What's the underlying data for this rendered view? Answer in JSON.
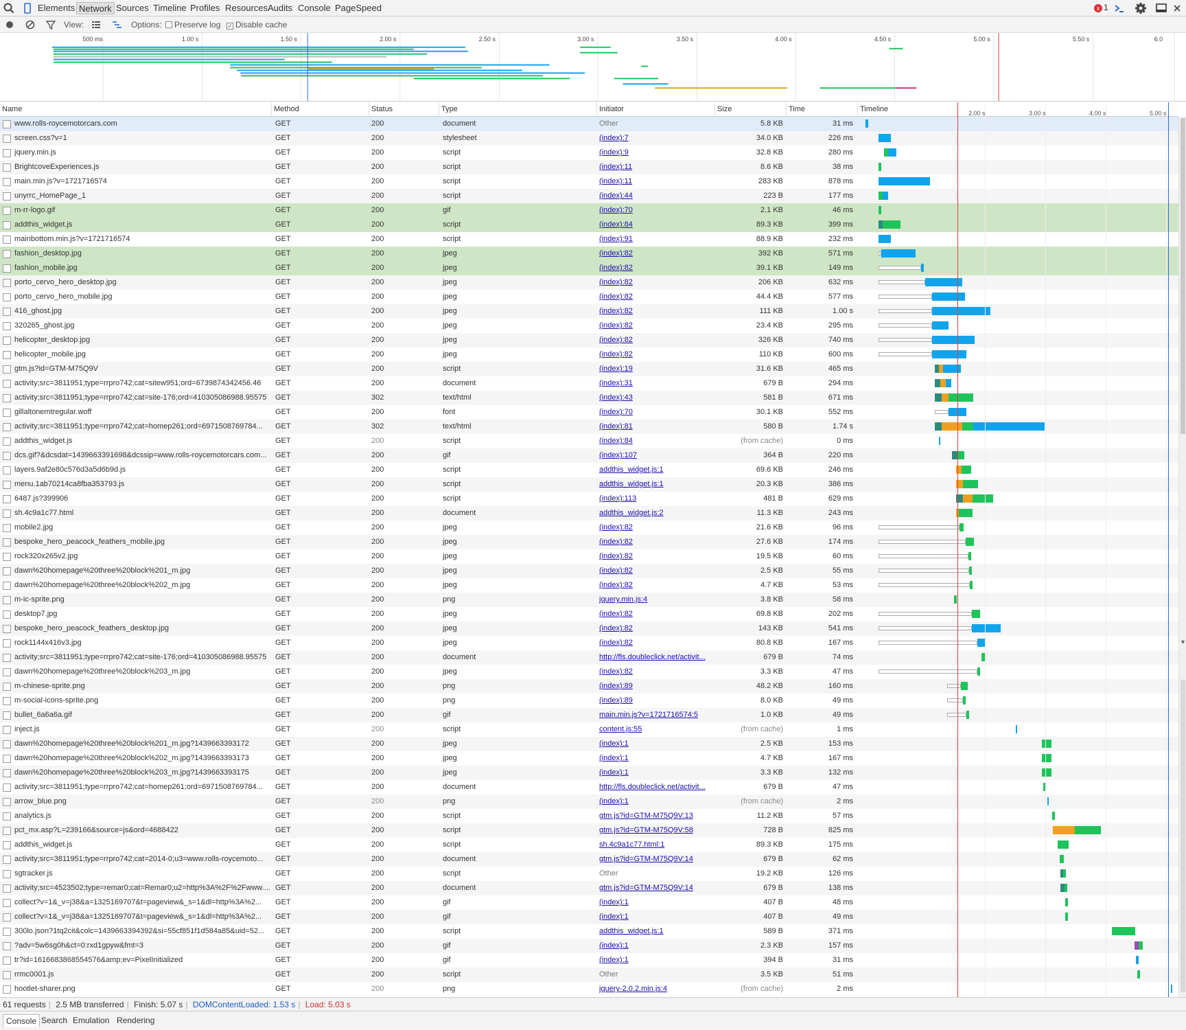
{
  "tabs": [
    "Elements",
    "Network",
    "Sources",
    "Timeline",
    "Profiles",
    "Resources",
    "Audits",
    "Console",
    "PageSpeed"
  ],
  "active_tab": "Network",
  "error_count": "1",
  "toolbar": {
    "view_label": "View:",
    "options_label": "Options:",
    "preserve_log": "Preserve log",
    "disable_cache": "Disable cache"
  },
  "overview_ticks": [
    "500 ms",
    "1.00 s",
    "1.50 s",
    "2.00 s",
    "2.50 s",
    "3.00 s",
    "3.50 s",
    "4.00 s",
    "4.50 s",
    "5.00 s",
    "5.50 s",
    "6.0"
  ],
  "columns": {
    "name": "Name",
    "method": "Method",
    "status": "Status",
    "type": "Type",
    "initiator": "Initiator",
    "size": "Size",
    "time": "Time",
    "timeline": "Timeline"
  },
  "timeline_ticks": [
    "2.00 s",
    "3.00 s",
    "4.00 s",
    "5.00 s"
  ],
  "rows": [
    {
      "name": "www.rolls-roycemotorcars.com",
      "method": "GET",
      "status": "200",
      "type": "document",
      "initiator": "Other",
      "size": "5.8 KB",
      "time": "31 ms"
    },
    {
      "name": "screen.css?v=1",
      "method": "GET",
      "status": "200",
      "type": "stylesheet",
      "initiator": "(index):7",
      "size": "34.0 KB",
      "time": "226 ms"
    },
    {
      "name": "jquery.min.js",
      "method": "GET",
      "status": "200",
      "type": "script",
      "initiator": "(index):9",
      "size": "32.8 KB",
      "time": "280 ms"
    },
    {
      "name": "BrightcoveExperiences.js",
      "method": "GET",
      "status": "200",
      "type": "script",
      "initiator": "(index):11",
      "size": "8.6 KB",
      "time": "38 ms"
    },
    {
      "name": "main.min.js?v=1721716574",
      "method": "GET",
      "status": "200",
      "type": "script",
      "initiator": "(index):11",
      "size": "283 KB",
      "time": "878 ms"
    },
    {
      "name": "unyrrc_HomePage_1",
      "method": "GET",
      "status": "200",
      "type": "script",
      "initiator": "(index):44",
      "size": "223 B",
      "time": "177 ms"
    },
    {
      "name": "m-rr-logo.gif",
      "method": "GET",
      "status": "200",
      "type": "gif",
      "initiator": "(index):70",
      "size": "2.1 KB",
      "time": "46 ms"
    },
    {
      "name": "addthis_widget.js",
      "method": "GET",
      "status": "200",
      "type": "script",
      "initiator": "(index):84",
      "size": "89.3 KB",
      "time": "399 ms"
    },
    {
      "name": "mainbottom.min.js?v=1721716574",
      "method": "GET",
      "status": "200",
      "type": "script",
      "initiator": "(index):91",
      "size": "88.9 KB",
      "time": "232 ms"
    },
    {
      "name": "fashion_desktop.jpg",
      "method": "GET",
      "status": "200",
      "type": "jpeg",
      "initiator": "(index):82",
      "size": "392 KB",
      "time": "571 ms"
    },
    {
      "name": "fashion_mobile.jpg",
      "method": "GET",
      "status": "200",
      "type": "jpeg",
      "initiator": "(index):82",
      "size": "39.1 KB",
      "time": "149 ms"
    },
    {
      "name": "porto_cervo_hero_desktop.jpg",
      "method": "GET",
      "status": "200",
      "type": "jpeg",
      "initiator": "(index):82",
      "size": "206 KB",
      "time": "632 ms"
    },
    {
      "name": "porto_cervo_hero_mobile.jpg",
      "method": "GET",
      "status": "200",
      "type": "jpeg",
      "initiator": "(index):82",
      "size": "44.4 KB",
      "time": "577 ms"
    },
    {
      "name": "416_ghost.jpg",
      "method": "GET",
      "status": "200",
      "type": "jpeg",
      "initiator": "(index):82",
      "size": "111 KB",
      "time": "1.00 s"
    },
    {
      "name": "320265_ghost.jpg",
      "method": "GET",
      "status": "200",
      "type": "jpeg",
      "initiator": "(index):82",
      "size": "23.4 KB",
      "time": "295 ms"
    },
    {
      "name": "helicopter_desktop.jpg",
      "method": "GET",
      "status": "200",
      "type": "jpeg",
      "initiator": "(index):82",
      "size": "326 KB",
      "time": "740 ms"
    },
    {
      "name": "helicopter_mobile.jpg",
      "method": "GET",
      "status": "200",
      "type": "jpeg",
      "initiator": "(index):82",
      "size": "110 KB",
      "time": "600 ms"
    },
    {
      "name": "gtm.js?id=GTM-M75Q9V",
      "method": "GET",
      "status": "200",
      "type": "script",
      "initiator": "(index):19",
      "size": "31.6 KB",
      "time": "465 ms"
    },
    {
      "name": "activity;src=3811951;type=rrpro742;cat=sitew951;ord=6739874342456.46",
      "method": "GET",
      "status": "200",
      "type": "document",
      "initiator": "(index):31",
      "size": "679 B",
      "time": "294 ms"
    },
    {
      "name": "activity;src=3811951;type=rrpro742;cat=site-176;ord=410305086988.95575",
      "method": "GET",
      "status": "302",
      "type": "text/html",
      "initiator": "(index):43",
      "size": "581 B",
      "time": "671 ms"
    },
    {
      "name": "gillaltonemtregular.woff",
      "method": "GET",
      "status": "200",
      "type": "font",
      "initiator": "(index):70",
      "size": "30.1 KB",
      "time": "552 ms"
    },
    {
      "name": "activity;src=3811951;type=rrpro742;cat=homep261;ord=6971508769784...",
      "method": "GET",
      "status": "302",
      "type": "text/html",
      "initiator": "(index):81",
      "size": "580 B",
      "time": "1.74 s"
    },
    {
      "name": "addthis_widget.js",
      "method": "GET",
      "status": "200",
      "type": "script",
      "initiator": "(index):84",
      "size": "(from cache)",
      "time": "0 ms"
    },
    {
      "name": "dcs.gif?&dcsdat=1439663391698&dcssip=www.rolls-roycemotorcars.com...",
      "method": "GET",
      "status": "200",
      "type": "gif",
      "initiator": "(index):107",
      "size": "364 B",
      "time": "220 ms"
    },
    {
      "name": "layers.9af2e80c576d3a5d6b9d.js",
      "method": "GET",
      "status": "200",
      "type": "script",
      "initiator": "addthis_widget.js:1",
      "size": "69.6 KB",
      "time": "246 ms"
    },
    {
      "name": "menu.1ab70214ca8fba353793.js",
      "method": "GET",
      "status": "200",
      "type": "script",
      "initiator": "addthis_widget.js:1",
      "size": "20.3 KB",
      "time": "386 ms"
    },
    {
      "name": "6487.js?399906",
      "method": "GET",
      "status": "200",
      "type": "script",
      "initiator": "(index):113",
      "size": "481 B",
      "time": "629 ms"
    },
    {
      "name": "sh.4c9a1c77.html",
      "method": "GET",
      "status": "200",
      "type": "document",
      "initiator": "addthis_widget.js:2",
      "size": "11.3 KB",
      "time": "243 ms"
    },
    {
      "name": "mobile2.jpg",
      "method": "GET",
      "status": "200",
      "type": "jpeg",
      "initiator": "(index):82",
      "size": "21.6 KB",
      "time": "96 ms"
    },
    {
      "name": "bespoke_hero_peacock_feathers_mobile.jpg",
      "method": "GET",
      "status": "200",
      "type": "jpeg",
      "initiator": "(index):82",
      "size": "27.6 KB",
      "time": "174 ms"
    },
    {
      "name": "rock320x265v2.jpg",
      "method": "GET",
      "status": "200",
      "type": "jpeg",
      "initiator": "(index):82",
      "size": "19.5 KB",
      "time": "60 ms"
    },
    {
      "name": "dawn%20homepage%20three%20block%201_m.jpg",
      "method": "GET",
      "status": "200",
      "type": "jpeg",
      "initiator": "(index):82",
      "size": "2.5 KB",
      "time": "55 ms"
    },
    {
      "name": "dawn%20homepage%20three%20block%202_m.jpg",
      "method": "GET",
      "status": "200",
      "type": "jpeg",
      "initiator": "(index):82",
      "size": "4.7 KB",
      "time": "53 ms"
    },
    {
      "name": "m-ic-sprite.png",
      "method": "GET",
      "status": "200",
      "type": "png",
      "initiator": "jquery.min.js:4",
      "size": "3.8 KB",
      "time": "58 ms"
    },
    {
      "name": "desktop7.jpg",
      "method": "GET",
      "status": "200",
      "type": "jpeg",
      "initiator": "(index):82",
      "size": "69.8 KB",
      "time": "202 ms"
    },
    {
      "name": "bespoke_hero_peacock_feathers_desktop.jpg",
      "method": "GET",
      "status": "200",
      "type": "jpeg",
      "initiator": "(index):82",
      "size": "143 KB",
      "time": "541 ms"
    },
    {
      "name": "rock1144x416v3.jpg",
      "method": "GET",
      "status": "200",
      "type": "jpeg",
      "initiator": "(index):82",
      "size": "80.8 KB",
      "time": "167 ms"
    },
    {
      "name": "activity;src=3811951;type=rrpro742;cat=site-176;ord=410305086988.95575",
      "method": "GET",
      "status": "200",
      "type": "document",
      "initiator": "http://fls.doubleclick.net/activit...",
      "size": "679 B",
      "time": "74 ms"
    },
    {
      "name": "dawn%20homepage%20three%20block%203_m.jpg",
      "method": "GET",
      "status": "200",
      "type": "jpeg",
      "initiator": "(index):82",
      "size": "3.3 KB",
      "time": "47 ms"
    },
    {
      "name": "m-chinese-sprite.png",
      "method": "GET",
      "status": "200",
      "type": "png",
      "initiator": "(index):89",
      "size": "48.2 KB",
      "time": "160 ms"
    },
    {
      "name": "m-social-icons-sprite.png",
      "method": "GET",
      "status": "200",
      "type": "png",
      "initiator": "(index):89",
      "size": "8.0 KB",
      "time": "49 ms"
    },
    {
      "name": "bullet_6a6a6a.gif",
      "method": "GET",
      "status": "200",
      "type": "gif",
      "initiator": "main.min.js?v=1721716574:5",
      "size": "1.0 KB",
      "time": "49 ms"
    },
    {
      "name": "inject.js",
      "method": "GET",
      "status": "200",
      "type": "script",
      "initiator": "content.js:55",
      "size": "(from cache)",
      "time": "1 ms"
    },
    {
      "name": "dawn%20homepage%20three%20block%201_m.jpg?1439663393172",
      "method": "GET",
      "status": "200",
      "type": "jpeg",
      "initiator": "(index):1",
      "size": "2.5 KB",
      "time": "153 ms"
    },
    {
      "name": "dawn%20homepage%20three%20block%202_m.jpg?1439663393173",
      "method": "GET",
      "status": "200",
      "type": "jpeg",
      "initiator": "(index):1",
      "size": "4.7 KB",
      "time": "167 ms"
    },
    {
      "name": "dawn%20homepage%20three%20block%203_m.jpg?1439663393175",
      "method": "GET",
      "status": "200",
      "type": "jpeg",
      "initiator": "(index):1",
      "size": "3.3 KB",
      "time": "132 ms"
    },
    {
      "name": "activity;src=3811951;type=rrpro742;cat=homep261;ord=6971508769784...",
      "method": "GET",
      "status": "200",
      "type": "document",
      "initiator": "http://fls.doubleclick.net/activit...",
      "size": "679 B",
      "time": "47 ms"
    },
    {
      "name": "arrow_blue.png",
      "method": "GET",
      "status": "200",
      "type": "png",
      "initiator": "(index):1",
      "size": "(from cache)",
      "time": "2 ms"
    },
    {
      "name": "analytics.js",
      "method": "GET",
      "status": "200",
      "type": "script",
      "initiator": "gtm.js?id=GTM-M75Q9V:13",
      "size": "11.2 KB",
      "time": "57 ms"
    },
    {
      "name": "pct_mx.asp?L=239166&source=js&ord=4688422",
      "method": "GET",
      "status": "200",
      "type": "script",
      "initiator": "gtm.js?id=GTM-M75Q9V:58",
      "size": "728 B",
      "time": "825 ms"
    },
    {
      "name": "addthis_widget.js",
      "method": "GET",
      "status": "200",
      "type": "script",
      "initiator": "sh.4c9a1c77.html:1",
      "size": "89.3 KB",
      "time": "175 ms"
    },
    {
      "name": "activity;src=3811951;type=rrpro742;cat=2014-0;u3=www.rolls-roycemoto...",
      "method": "GET",
      "status": "200",
      "type": "document",
      "initiator": "gtm.js?id=GTM-M75Q9V:14",
      "size": "679 B",
      "time": "62 ms"
    },
    {
      "name": "sgtracker.js",
      "method": "GET",
      "status": "200",
      "type": "script",
      "initiator": "Other",
      "size": "19.2 KB",
      "time": "126 ms"
    },
    {
      "name": "activity;src=4523502;type=remar0;cat=Remar0;u2=http%3A%2F%2Fwww....",
      "method": "GET",
      "status": "200",
      "type": "document",
      "initiator": "gtm.js?id=GTM-M75Q9V:14",
      "size": "679 B",
      "time": "138 ms"
    },
    {
      "name": "collect?v=1&_v=j38&a=1325169707&t=pageview&_s=1&dl=http%3A%2...",
      "method": "GET",
      "status": "200",
      "type": "gif",
      "initiator": "(index):1",
      "size": "407 B",
      "time": "48 ms"
    },
    {
      "name": "collect?v=1&_v=j38&a=1325169707&t=pageview&_s=1&dl=http%3A%2...",
      "method": "GET",
      "status": "200",
      "type": "gif",
      "initiator": "(index):1",
      "size": "407 B",
      "time": "49 ms"
    },
    {
      "name": "300lo.json?1tq2cit&colc=1439663394392&si=55cf851f1d584a85&uid=52...",
      "method": "GET",
      "status": "200",
      "type": "script",
      "initiator": "addthis_widget.js:1",
      "size": "589 B",
      "time": "371 ms"
    },
    {
      "name": "?adv=5w6sg0h&ct=0:rxd1gpyw&fmt=3",
      "method": "GET",
      "status": "200",
      "type": "gif",
      "initiator": "(index):1",
      "size": "2.3 KB",
      "time": "157 ms"
    },
    {
      "name": "tr?id=1616683868554576&amp;ev=PixelInitialized",
      "method": "GET",
      "status": "200",
      "type": "gif",
      "initiator": "(index):1",
      "size": "394 B",
      "time": "31 ms"
    },
    {
      "name": "rrmc0001.js",
      "method": "GET",
      "status": "200",
      "type": "script",
      "initiator": "Other",
      "size": "3.5 KB",
      "time": "51 ms"
    },
    {
      "name": "hootlet-sharer.png",
      "method": "GET",
      "status": "200",
      "type": "png",
      "initiator": "jquery-2.0.2.min.js:4",
      "size": "(from cache)",
      "time": "2 ms"
    }
  ],
  "status_bar": {
    "requests": "61 requests",
    "transferred": "2.5 MB transferred",
    "finish": "Finish: 5.07 s",
    "dcl": "DOMContentLoaded: 1.53 s",
    "load": "Load: 5.03 s"
  },
  "drawer_tabs": [
    "Console",
    "Search",
    "Emulation",
    "Rendering"
  ],
  "colors": {
    "blue_bar": "#11a4ec",
    "green_bar": "#1ec45a",
    "orange_bar": "#f0a020",
    "teal_bar": "#2a8c7c",
    "dcl_line": "#2c6ad8",
    "load_line": "#e03c3c"
  }
}
